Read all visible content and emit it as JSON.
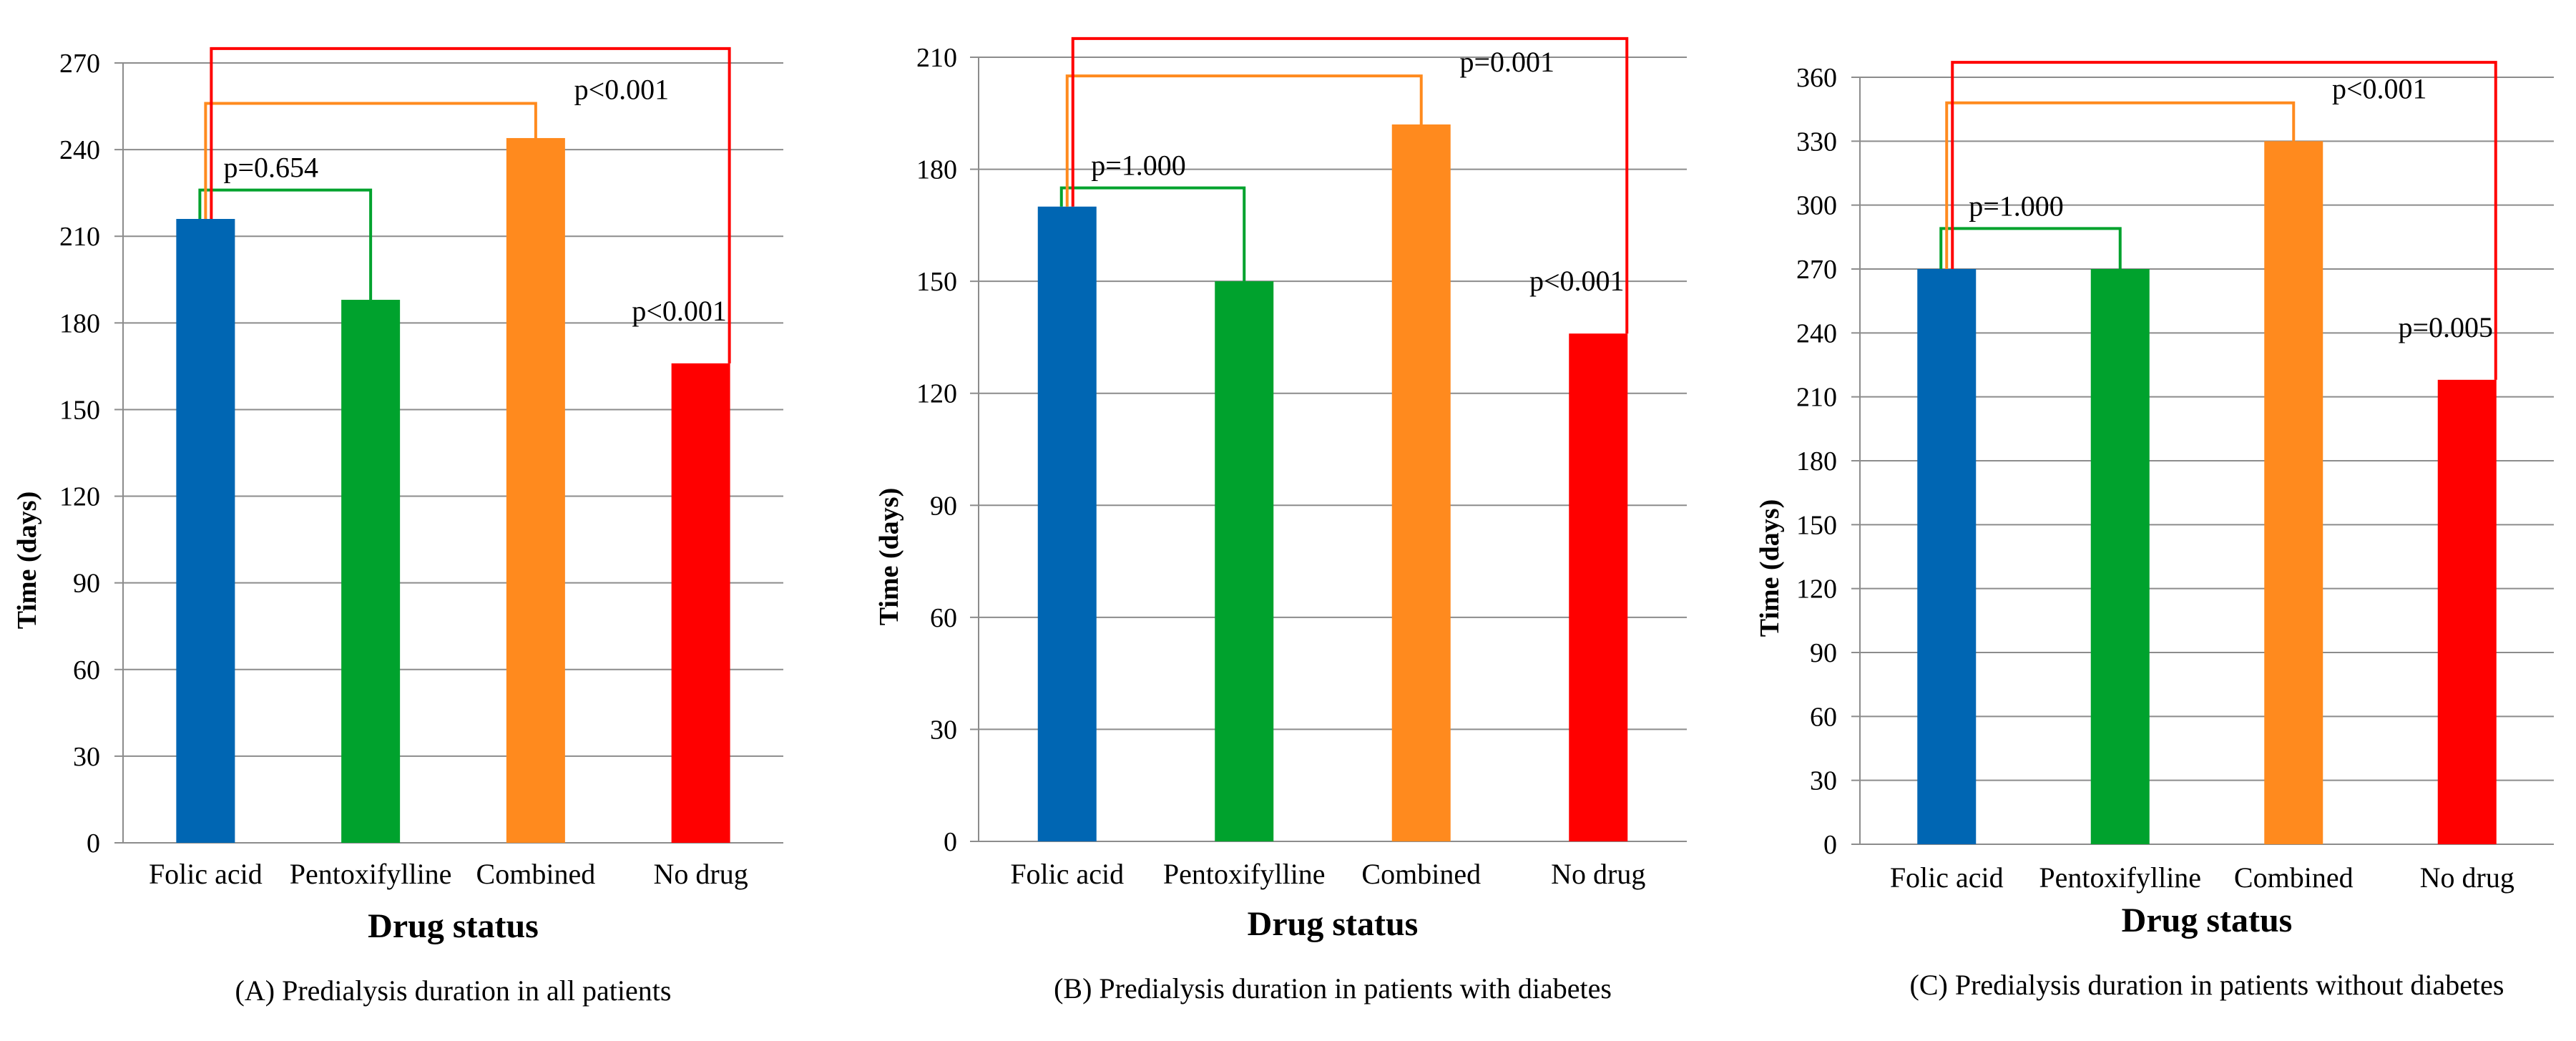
{
  "chart_data": [
    {
      "type": "bar",
      "panel": "A",
      "title": "(A) Predialysis duration in all patients",
      "xlabel": "Drug status",
      "ylabel": "Time (days)",
      "ylim": [
        0,
        270
      ],
      "yticks": [
        0,
        30,
        60,
        90,
        120,
        150,
        180,
        210,
        240,
        270
      ],
      "categories": [
        "Folic acid",
        "Pentoxifylline",
        "Combined",
        "No drug"
      ],
      "values": [
        216,
        188,
        244,
        166
      ],
      "colors": [
        "#0066b3",
        "#00a22d",
        "#ff8a1e",
        "#ff0000"
      ],
      "grid": true,
      "comparisons": [
        {
          "to": "Pentoxifylline",
          "label": "p=0.654",
          "color": "#00a22d",
          "bracket_value": 226,
          "drop_value": 226
        },
        {
          "to": "Combined",
          "label": "p<0.001",
          "color": "#ff8a1e",
          "bracket_value": 256,
          "drop_value": 256
        },
        {
          "to": "No drug",
          "label": "p<0.001",
          "color": "#ff0000",
          "bracket_value": 275,
          "drop_value": 275
        }
      ]
    },
    {
      "type": "bar",
      "panel": "B",
      "title": "(B) Predialysis duration in patients with diabetes",
      "xlabel": "Drug status",
      "ylabel": "Time (days)",
      "ylim": [
        0,
        210
      ],
      "yticks": [
        0,
        30,
        60,
        90,
        120,
        150,
        180,
        210
      ],
      "categories": [
        "Folic acid",
        "Pentoxifylline",
        "Combined",
        "No drug"
      ],
      "values": [
        170,
        150,
        192,
        136
      ],
      "colors": [
        "#0066b3",
        "#00a22d",
        "#ff8a1e",
        "#ff0000"
      ],
      "grid": true,
      "comparisons": [
        {
          "to": "Pentoxifylline",
          "label": "p=1.000",
          "color": "#00a22d",
          "bracket_value": 175,
          "drop_value": 175
        },
        {
          "to": "Combined",
          "label": "p=0.001",
          "color": "#ff8a1e",
          "bracket_value": 205,
          "drop_value": 205
        },
        {
          "to": "No drug",
          "label": "p<0.001",
          "color": "#ff0000",
          "bracket_value": 215,
          "drop_value": 215
        }
      ]
    },
    {
      "type": "bar",
      "panel": "C",
      "title": "(C) Predialysis duration in patients without diabetes",
      "xlabel": "Drug status",
      "ylabel": "Time (days)",
      "ylim": [
        0,
        360
      ],
      "yticks": [
        0,
        30,
        60,
        90,
        120,
        150,
        180,
        210,
        240,
        270,
        300,
        330,
        360
      ],
      "categories": [
        "Folic acid",
        "Pentoxifylline",
        "Combined",
        "No drug"
      ],
      "values": [
        270,
        270,
        330,
        218
      ],
      "colors": [
        "#0066b3",
        "#00a22d",
        "#ff8a1e",
        "#ff0000"
      ],
      "grid": true,
      "comparisons": [
        {
          "to": "Pentoxifylline",
          "label": "p=1.000",
          "color": "#00a22d",
          "bracket_value": 289,
          "drop_value": 289
        },
        {
          "to": "Combined",
          "label": "p<0.001",
          "color": "#ff8a1e",
          "bracket_value": 348,
          "drop_value": 348
        },
        {
          "to": "No drug",
          "label": "p=0.005",
          "color": "#ff0000",
          "bracket_value": 367,
          "drop_value": 367
        }
      ]
    }
  ]
}
